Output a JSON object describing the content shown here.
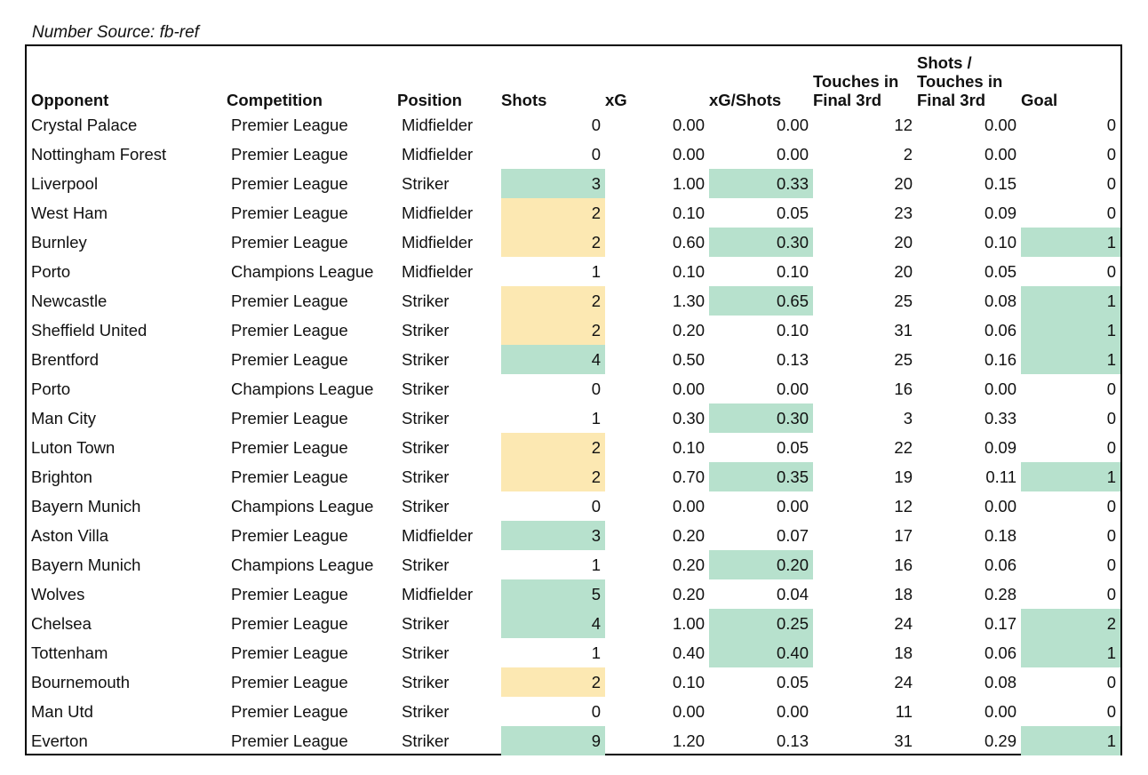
{
  "source_note": "Number Source: fb-ref",
  "colors": {
    "highlight_green": "#b7e1cd",
    "highlight_yellow": "#fce8b2"
  },
  "columns": [
    "Opponent",
    "Competition",
    "Position",
    "Shots",
    "xG",
    "xG/Shots",
    "Touches in\nFinal 3rd",
    "Shots /\nTouches in\nFinal 3rd",
    "Goal"
  ],
  "rows": [
    [
      "Crystal Palace",
      "Premier League",
      "Midfielder",
      "0",
      "0.00",
      "0.00",
      "12",
      "0.00",
      "0"
    ],
    [
      "Nottingham Forest",
      "Premier League",
      "Midfielder",
      "0",
      "0.00",
      "0.00",
      "2",
      "0.00",
      "0"
    ],
    [
      "Liverpool",
      "Premier League",
      "Striker",
      "3",
      "1.00",
      "0.33",
      "20",
      "0.15",
      "0"
    ],
    [
      "West Ham",
      "Premier League",
      "Midfielder",
      "2",
      "0.10",
      "0.05",
      "23",
      "0.09",
      "0"
    ],
    [
      "Burnley",
      "Premier League",
      "Midfielder",
      "2",
      "0.60",
      "0.30",
      "20",
      "0.10",
      "1"
    ],
    [
      "Porto",
      "Champions League",
      "Midfielder",
      "1",
      "0.10",
      "0.10",
      "20",
      "0.05",
      "0"
    ],
    [
      "Newcastle",
      "Premier League",
      "Striker",
      "2",
      "1.30",
      "0.65",
      "25",
      "0.08",
      "1"
    ],
    [
      "Sheffield United",
      "Premier League",
      "Striker",
      "2",
      "0.20",
      "0.10",
      "31",
      "0.06",
      "1"
    ],
    [
      "Brentford",
      "Premier League",
      "Striker",
      "4",
      "0.50",
      "0.13",
      "25",
      "0.16",
      "1"
    ],
    [
      "Porto",
      "Champions League",
      "Striker",
      "0",
      "0.00",
      "0.00",
      "16",
      "0.00",
      "0"
    ],
    [
      "Man City",
      "Premier League",
      "Striker",
      "1",
      "0.30",
      "0.30",
      "3",
      "0.33",
      "0"
    ],
    [
      "Luton Town",
      "Premier League",
      "Striker",
      "2",
      "0.10",
      "0.05",
      "22",
      "0.09",
      "0"
    ],
    [
      "Brighton",
      "Premier League",
      "Striker",
      "2",
      "0.70",
      "0.35",
      "19",
      "0.11",
      "1"
    ],
    [
      "Bayern Munich",
      "Champions League",
      "Striker",
      "0",
      "0.00",
      "0.00",
      "12",
      "0.00",
      "0"
    ],
    [
      "Aston Villa",
      "Premier League",
      "Midfielder",
      "3",
      "0.20",
      "0.07",
      "17",
      "0.18",
      "0"
    ],
    [
      "Bayern Munich",
      "Champions League",
      "Striker",
      "1",
      "0.20",
      "0.20",
      "16",
      "0.06",
      "0"
    ],
    [
      "Wolves",
      "Premier League",
      "Midfielder",
      "5",
      "0.20",
      "0.04",
      "18",
      "0.28",
      "0"
    ],
    [
      "Chelsea",
      "Premier League",
      "Striker",
      "4",
      "1.00",
      "0.25",
      "24",
      "0.17",
      "2"
    ],
    [
      "Tottenham",
      "Premier League",
      "Striker",
      "1",
      "0.40",
      "0.40",
      "18",
      "0.06",
      "1"
    ],
    [
      "Bournemouth",
      "Premier League",
      "Striker",
      "2",
      "0.10",
      "0.05",
      "24",
      "0.08",
      "0"
    ],
    [
      "Man Utd",
      "Premier League",
      "Striker",
      "0",
      "0.00",
      "0.00",
      "11",
      "0.00",
      "0"
    ],
    [
      "Everton",
      "Premier League",
      "Striker",
      "9",
      "1.20",
      "0.13",
      "31",
      "0.29",
      "1"
    ]
  ],
  "cell_highlights": [
    [
      null,
      null,
      null,
      null,
      null,
      null,
      null,
      null,
      null
    ],
    [
      null,
      null,
      null,
      null,
      null,
      null,
      null,
      null,
      null
    ],
    [
      null,
      null,
      null,
      "green",
      null,
      "green",
      null,
      null,
      null
    ],
    [
      null,
      null,
      null,
      "yellow",
      null,
      null,
      null,
      null,
      null
    ],
    [
      null,
      null,
      null,
      "yellow",
      null,
      "green",
      null,
      null,
      "green"
    ],
    [
      null,
      null,
      null,
      null,
      null,
      null,
      null,
      null,
      null
    ],
    [
      null,
      null,
      null,
      "yellow",
      null,
      "green",
      null,
      null,
      "green"
    ],
    [
      null,
      null,
      null,
      "yellow",
      null,
      null,
      null,
      null,
      "green"
    ],
    [
      null,
      null,
      null,
      "green",
      null,
      null,
      null,
      null,
      "green"
    ],
    [
      null,
      null,
      null,
      null,
      null,
      null,
      null,
      null,
      null
    ],
    [
      null,
      null,
      null,
      null,
      null,
      "green",
      null,
      null,
      null
    ],
    [
      null,
      null,
      null,
      "yellow",
      null,
      null,
      null,
      null,
      null
    ],
    [
      null,
      null,
      null,
      "yellow",
      null,
      "green",
      null,
      null,
      "green"
    ],
    [
      null,
      null,
      null,
      null,
      null,
      null,
      null,
      null,
      null
    ],
    [
      null,
      null,
      null,
      "green",
      null,
      null,
      null,
      null,
      null
    ],
    [
      null,
      null,
      null,
      null,
      null,
      "green",
      null,
      null,
      null
    ],
    [
      null,
      null,
      null,
      "green",
      null,
      null,
      null,
      null,
      null
    ],
    [
      null,
      null,
      null,
      "green",
      null,
      "green",
      null,
      null,
      "green"
    ],
    [
      null,
      null,
      null,
      null,
      null,
      "green",
      null,
      null,
      "green"
    ],
    [
      null,
      null,
      null,
      "yellow",
      null,
      null,
      null,
      null,
      null
    ],
    [
      null,
      null,
      null,
      null,
      null,
      null,
      null,
      null,
      null
    ],
    [
      null,
      null,
      null,
      "green",
      null,
      null,
      null,
      null,
      "green"
    ]
  ]
}
